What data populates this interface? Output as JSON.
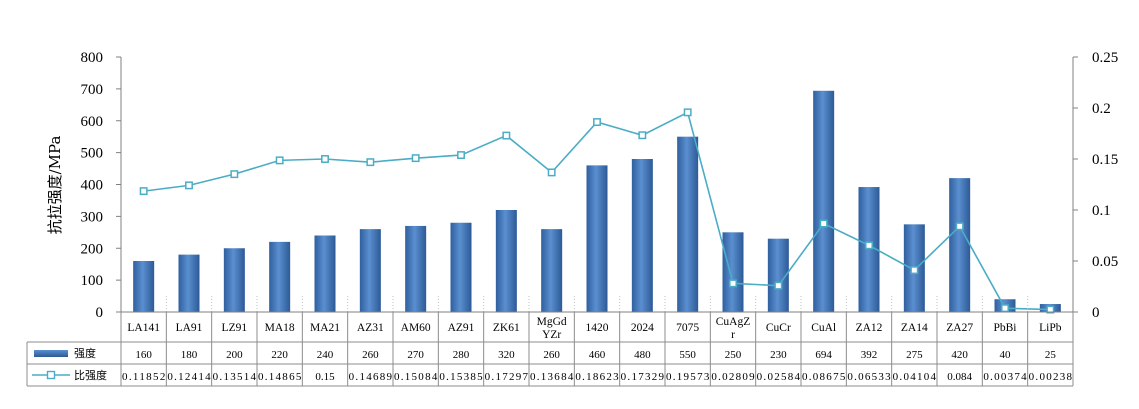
{
  "chart_data": {
    "type": "bar",
    "title": "",
    "xlabel": "",
    "ylabel": "抗拉强度/MPa",
    "ylim": [
      0,
      800
    ],
    "y_ticks": [
      "0",
      "100",
      "200",
      "300",
      "400",
      "500",
      "600",
      "700",
      "800"
    ],
    "y2lim": [
      0,
      0.25
    ],
    "y2_ticks": [
      "0",
      "0.05",
      "0.1",
      "0.15",
      "0.2",
      "0.25"
    ],
    "grid": false,
    "legend_position": "bottom-data-table",
    "categories": [
      "LA141",
      "LA91",
      "LZ91",
      "MA18",
      "MA21",
      "AZ31",
      "AM60",
      "AZ91",
      "ZK61",
      "MgGdYZr",
      "1420",
      "2024",
      "7075",
      "CuAgZr",
      "CuCr",
      "CuAl",
      "ZA12",
      "ZA14",
      "ZA27",
      "PbBi",
      "LiPb"
    ],
    "category_lines": [
      [
        "LA141"
      ],
      [
        "LA91"
      ],
      [
        "LZ91"
      ],
      [
        "MA18"
      ],
      [
        "MA21"
      ],
      [
        "AZ31"
      ],
      [
        "AM60"
      ],
      [
        "AZ91"
      ],
      [
        "ZK61"
      ],
      [
        "MgGd",
        "YZr"
      ],
      [
        "1420"
      ],
      [
        "2024"
      ],
      [
        "7075"
      ],
      [
        "CuAgZ",
        "r"
      ],
      [
        "CuCr"
      ],
      [
        "CuAl"
      ],
      [
        "ZA12"
      ],
      [
        "ZA14"
      ],
      [
        "ZA27"
      ],
      [
        "PbBi"
      ],
      [
        "LiPb"
      ]
    ],
    "series": [
      {
        "name": "强度",
        "type": "bar",
        "axis": "left",
        "color": "#4a7ebb",
        "values": [
          160,
          180,
          200,
          220,
          240,
          260,
          270,
          280,
          320,
          260,
          460,
          480,
          550,
          250,
          230,
          694,
          392,
          275,
          420,
          40,
          25
        ],
        "labels": [
          "160",
          "180",
          "200",
          "220",
          "240",
          "260",
          "270",
          "280",
          "320",
          "260",
          "460",
          "480",
          "550",
          "250",
          "230",
          "694",
          "392",
          "275",
          "420",
          "40",
          "25"
        ]
      },
      {
        "name": "比强度",
        "type": "line",
        "axis": "right",
        "color": "#4bacc6",
        "values": [
          0.11852,
          0.12414,
          0.13514,
          0.14865,
          0.15,
          0.14689,
          0.15084,
          0.15385,
          0.17297,
          0.13684,
          0.18623,
          0.17329,
          0.19573,
          0.02809,
          0.02584,
          0.08675,
          0.06533,
          0.04104,
          0.084,
          0.00374,
          0.00238
        ],
        "labels": [
          "0.11852",
          "0.12414",
          "0.13514",
          "0.14865",
          "0.15",
          "0.14689",
          "0.15084",
          "0.15385",
          "0.17297",
          "0.13684",
          "0.18623",
          "0.17329",
          "0.19573",
          "0.02809",
          "0.02584",
          "0.08675",
          "0.06533",
          "0.04104",
          "0.084",
          "0.00374",
          "0.00238"
        ]
      }
    ]
  }
}
